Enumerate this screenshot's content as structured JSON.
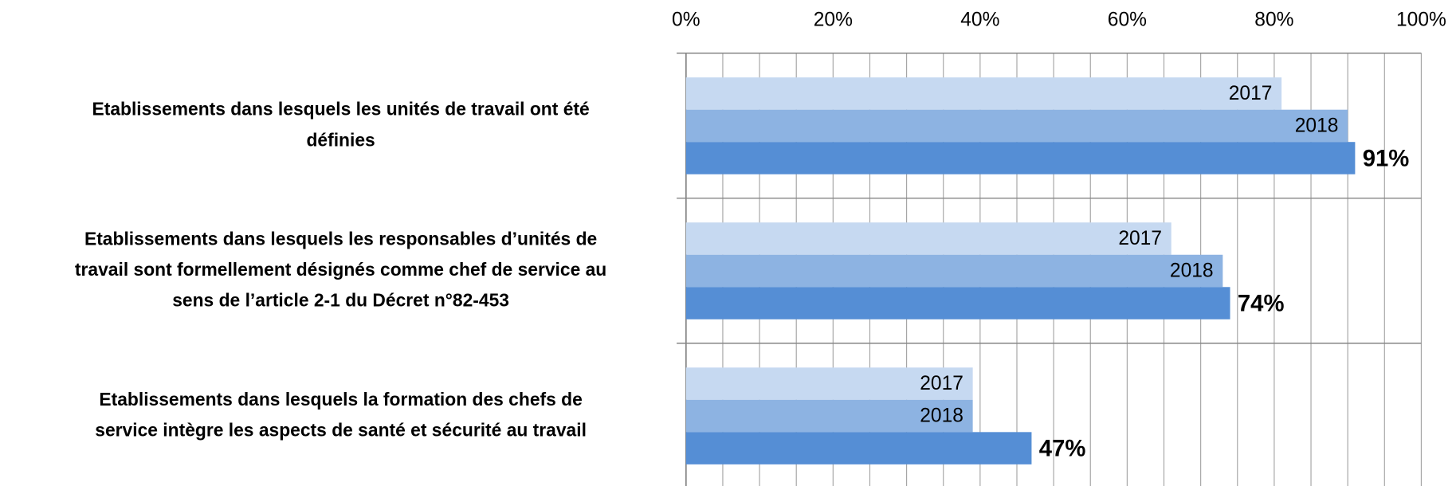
{
  "chart_data": {
    "type": "bar",
    "orientation": "horizontal",
    "categories": [
      [
        "Etablissements dans lesquels les unités de travail ont été",
        "définies"
      ],
      [
        "Etablissements dans lesquels les responsables d’unités de",
        "travail sont formellement désignés comme chef de service au",
        "sens de l’article 2-1 du Décret n°82-453"
      ],
      [
        "Etablissements dans lesquels la formation des chefs de",
        "service intègre les aspects de santé et sécurité au travail"
      ]
    ],
    "series": [
      {
        "name": "2017",
        "color": "#c6d9f1",
        "values": [
          81,
          66,
          39
        ]
      },
      {
        "name": "2018",
        "color": "#8db3e2",
        "values": [
          90,
          73,
          39
        ]
      },
      {
        "color": "#558ed5",
        "values": [
          91,
          74,
          47
        ],
        "value_labels": [
          "91%",
          "74%",
          "47%"
        ]
      }
    ],
    "xlim": [
      0,
      100
    ],
    "xticks": [
      {
        "value": 0,
        "label": "0%"
      },
      {
        "value": 20,
        "label": "20%"
      },
      {
        "value": 40,
        "label": "40%"
      },
      {
        "value": 60,
        "label": "60%"
      },
      {
        "value": 80,
        "label": "80%"
      },
      {
        "value": 100,
        "label": "100%"
      }
    ],
    "xgrid": [
      0,
      5,
      10,
      15,
      20,
      25,
      30,
      35,
      40,
      45,
      50,
      55,
      60,
      65,
      70,
      75,
      80,
      85,
      90,
      95,
      100
    ]
  }
}
